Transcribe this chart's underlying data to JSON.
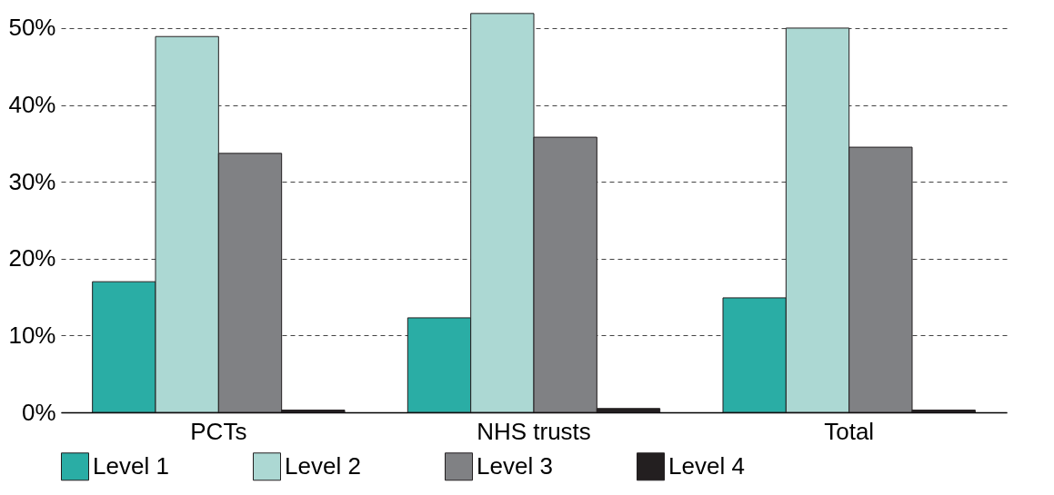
{
  "chart_data": {
    "type": "bar",
    "categories": [
      "PCTs",
      "NHS trusts",
      "Total"
    ],
    "series": [
      {
        "name": "Level 1",
        "color": "#2aada5",
        "values": [
          17.0,
          12.3,
          14.9
        ]
      },
      {
        "name": "Level 2",
        "color": "#acd8d3",
        "values": [
          48.9,
          51.9,
          50.0
        ]
      },
      {
        "name": "Level 3",
        "color": "#808184",
        "values": [
          33.7,
          35.8,
          34.5
        ]
      },
      {
        "name": "Level 4",
        "color": "#231f20",
        "values": [
          0.3,
          0.5,
          0.3
        ]
      }
    ],
    "ylim": [
      0,
      52
    ],
    "yticks": [
      {
        "value": 0,
        "label": "0%"
      },
      {
        "value": 10,
        "label": "10%"
      },
      {
        "value": 20,
        "label": "20%"
      },
      {
        "value": 30,
        "label": "30%"
      },
      {
        "value": 40,
        "label": "40%"
      },
      {
        "value": 50,
        "label": "50%"
      }
    ],
    "grid": "y",
    "legend": "bottom"
  }
}
